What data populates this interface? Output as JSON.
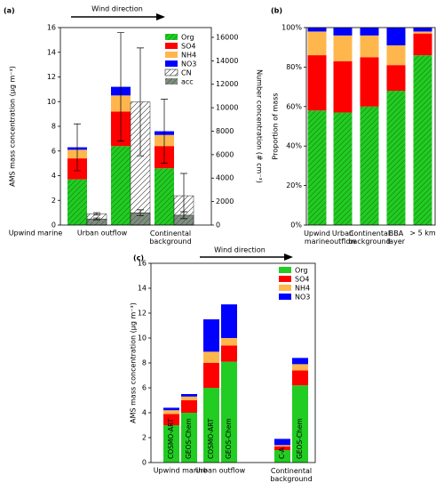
{
  "chart_data": [
    {
      "type": "bar",
      "panel_label": "(a)",
      "annotation": "Wind direction",
      "categories": [
        "Upwind marine",
        "Urban outflow",
        "Continental\nbackground"
      ],
      "ylabel": "AMS mass concentration (μg m⁻³)",
      "y2label": "Number concentration (# cm⁻³)",
      "ylim": [
        0,
        16
      ],
      "yticks": [
        0,
        2,
        4,
        6,
        8,
        10,
        12,
        14,
        16
      ],
      "y2lim": [
        0,
        16833
      ],
      "y2ticks": [
        0,
        2000,
        4000,
        6000,
        8000,
        10000,
        12000,
        14000,
        16000
      ],
      "series": [
        {
          "name": "Org",
          "color": "#22cc22",
          "hatch": true,
          "values": [
            3.7,
            6.4,
            4.6
          ]
        },
        {
          "name": "SO4",
          "color": "#ff0000",
          "values": [
            1.7,
            2.8,
            1.8
          ]
        },
        {
          "name": "NH4",
          "color": "#ffb74d",
          "values": [
            0.7,
            1.3,
            0.9
          ]
        },
        {
          "name": "NO3",
          "color": "#0000ff",
          "values": [
            0.2,
            0.7,
            0.3
          ]
        },
        {
          "name": "CN",
          "color": "#ffffff",
          "hatch": true,
          "axis": "y2",
          "values": [
            950,
            10500,
            2500
          ],
          "errors": [
            100,
            4600,
            1900
          ]
        },
        {
          "name": "acc",
          "color": "#888888",
          "hatch": true,
          "axis": "y2",
          "values": [
            520,
            1050,
            840
          ],
          "errors": [
            80,
            250,
            300
          ]
        }
      ],
      "mass_errors": [
        1.9,
        4.4,
        2.6
      ]
    },
    {
      "type": "bar",
      "panel_label": "(b)",
      "categories": [
        "Upwind\nmarine",
        "Urban\noutflow",
        "Continental\nbackground",
        "BBA\nlayer",
        "> 5 km"
      ],
      "ylabel": "Proportion of mass",
      "ylim": [
        0,
        100
      ],
      "yticks": [
        {
          "value": 0,
          "label": "0%"
        },
        {
          "value": 20,
          "label": "20%"
        },
        {
          "value": 40,
          "label": "40%"
        },
        {
          "value": 60,
          "label": "60%"
        },
        {
          "value": 80,
          "label": "80%"
        },
        {
          "value": 100,
          "label": "100%"
        }
      ],
      "series": [
        {
          "name": "Org",
          "color": "#22cc22",
          "hatch": true,
          "values": [
            58,
            57,
            60,
            68,
            86
          ]
        },
        {
          "name": "SO4",
          "color": "#ff0000",
          "values": [
            28,
            26,
            25,
            13,
            11
          ]
        },
        {
          "name": "NH4",
          "color": "#ffb74d",
          "values": [
            12,
            13,
            11,
            10,
            1
          ]
        },
        {
          "name": "NO3",
          "color": "#0000ff",
          "values": [
            2,
            4,
            4,
            9,
            2
          ]
        }
      ]
    },
    {
      "type": "bar",
      "panel_label": "(c)",
      "annotation": "Wind direction",
      "categories": [
        "COSMO-ART",
        "GEOS-Chem",
        "COSMO-ART",
        "GEOS-Chem",
        "C-A",
        "GEOS-Chem"
      ],
      "groups": [
        "Upwind marine",
        "Urban outflow",
        "Continental\nbackground"
      ],
      "ylabel": "AMS mass concentration (μg m⁻³)",
      "ylim": [
        0,
        16
      ],
      "yticks": [
        0,
        2,
        4,
        6,
        8,
        10,
        12,
        14,
        16
      ],
      "series": [
        {
          "name": "Org",
          "color": "#22cc22",
          "values": [
            3.0,
            4.0,
            6.0,
            8.1,
            1.0,
            6.2
          ]
        },
        {
          "name": "SO4",
          "color": "#ff0000",
          "values": [
            0.9,
            1.0,
            2.0,
            1.3,
            0.3,
            1.2
          ]
        },
        {
          "name": "NH4",
          "color": "#ffb74d",
          "values": [
            0.3,
            0.3,
            0.9,
            0.6,
            0.1,
            0.5
          ]
        },
        {
          "name": "NO3",
          "color": "#0000ff",
          "values": [
            0.2,
            0.2,
            2.6,
            2.7,
            0.5,
            0.5
          ]
        }
      ]
    }
  ]
}
